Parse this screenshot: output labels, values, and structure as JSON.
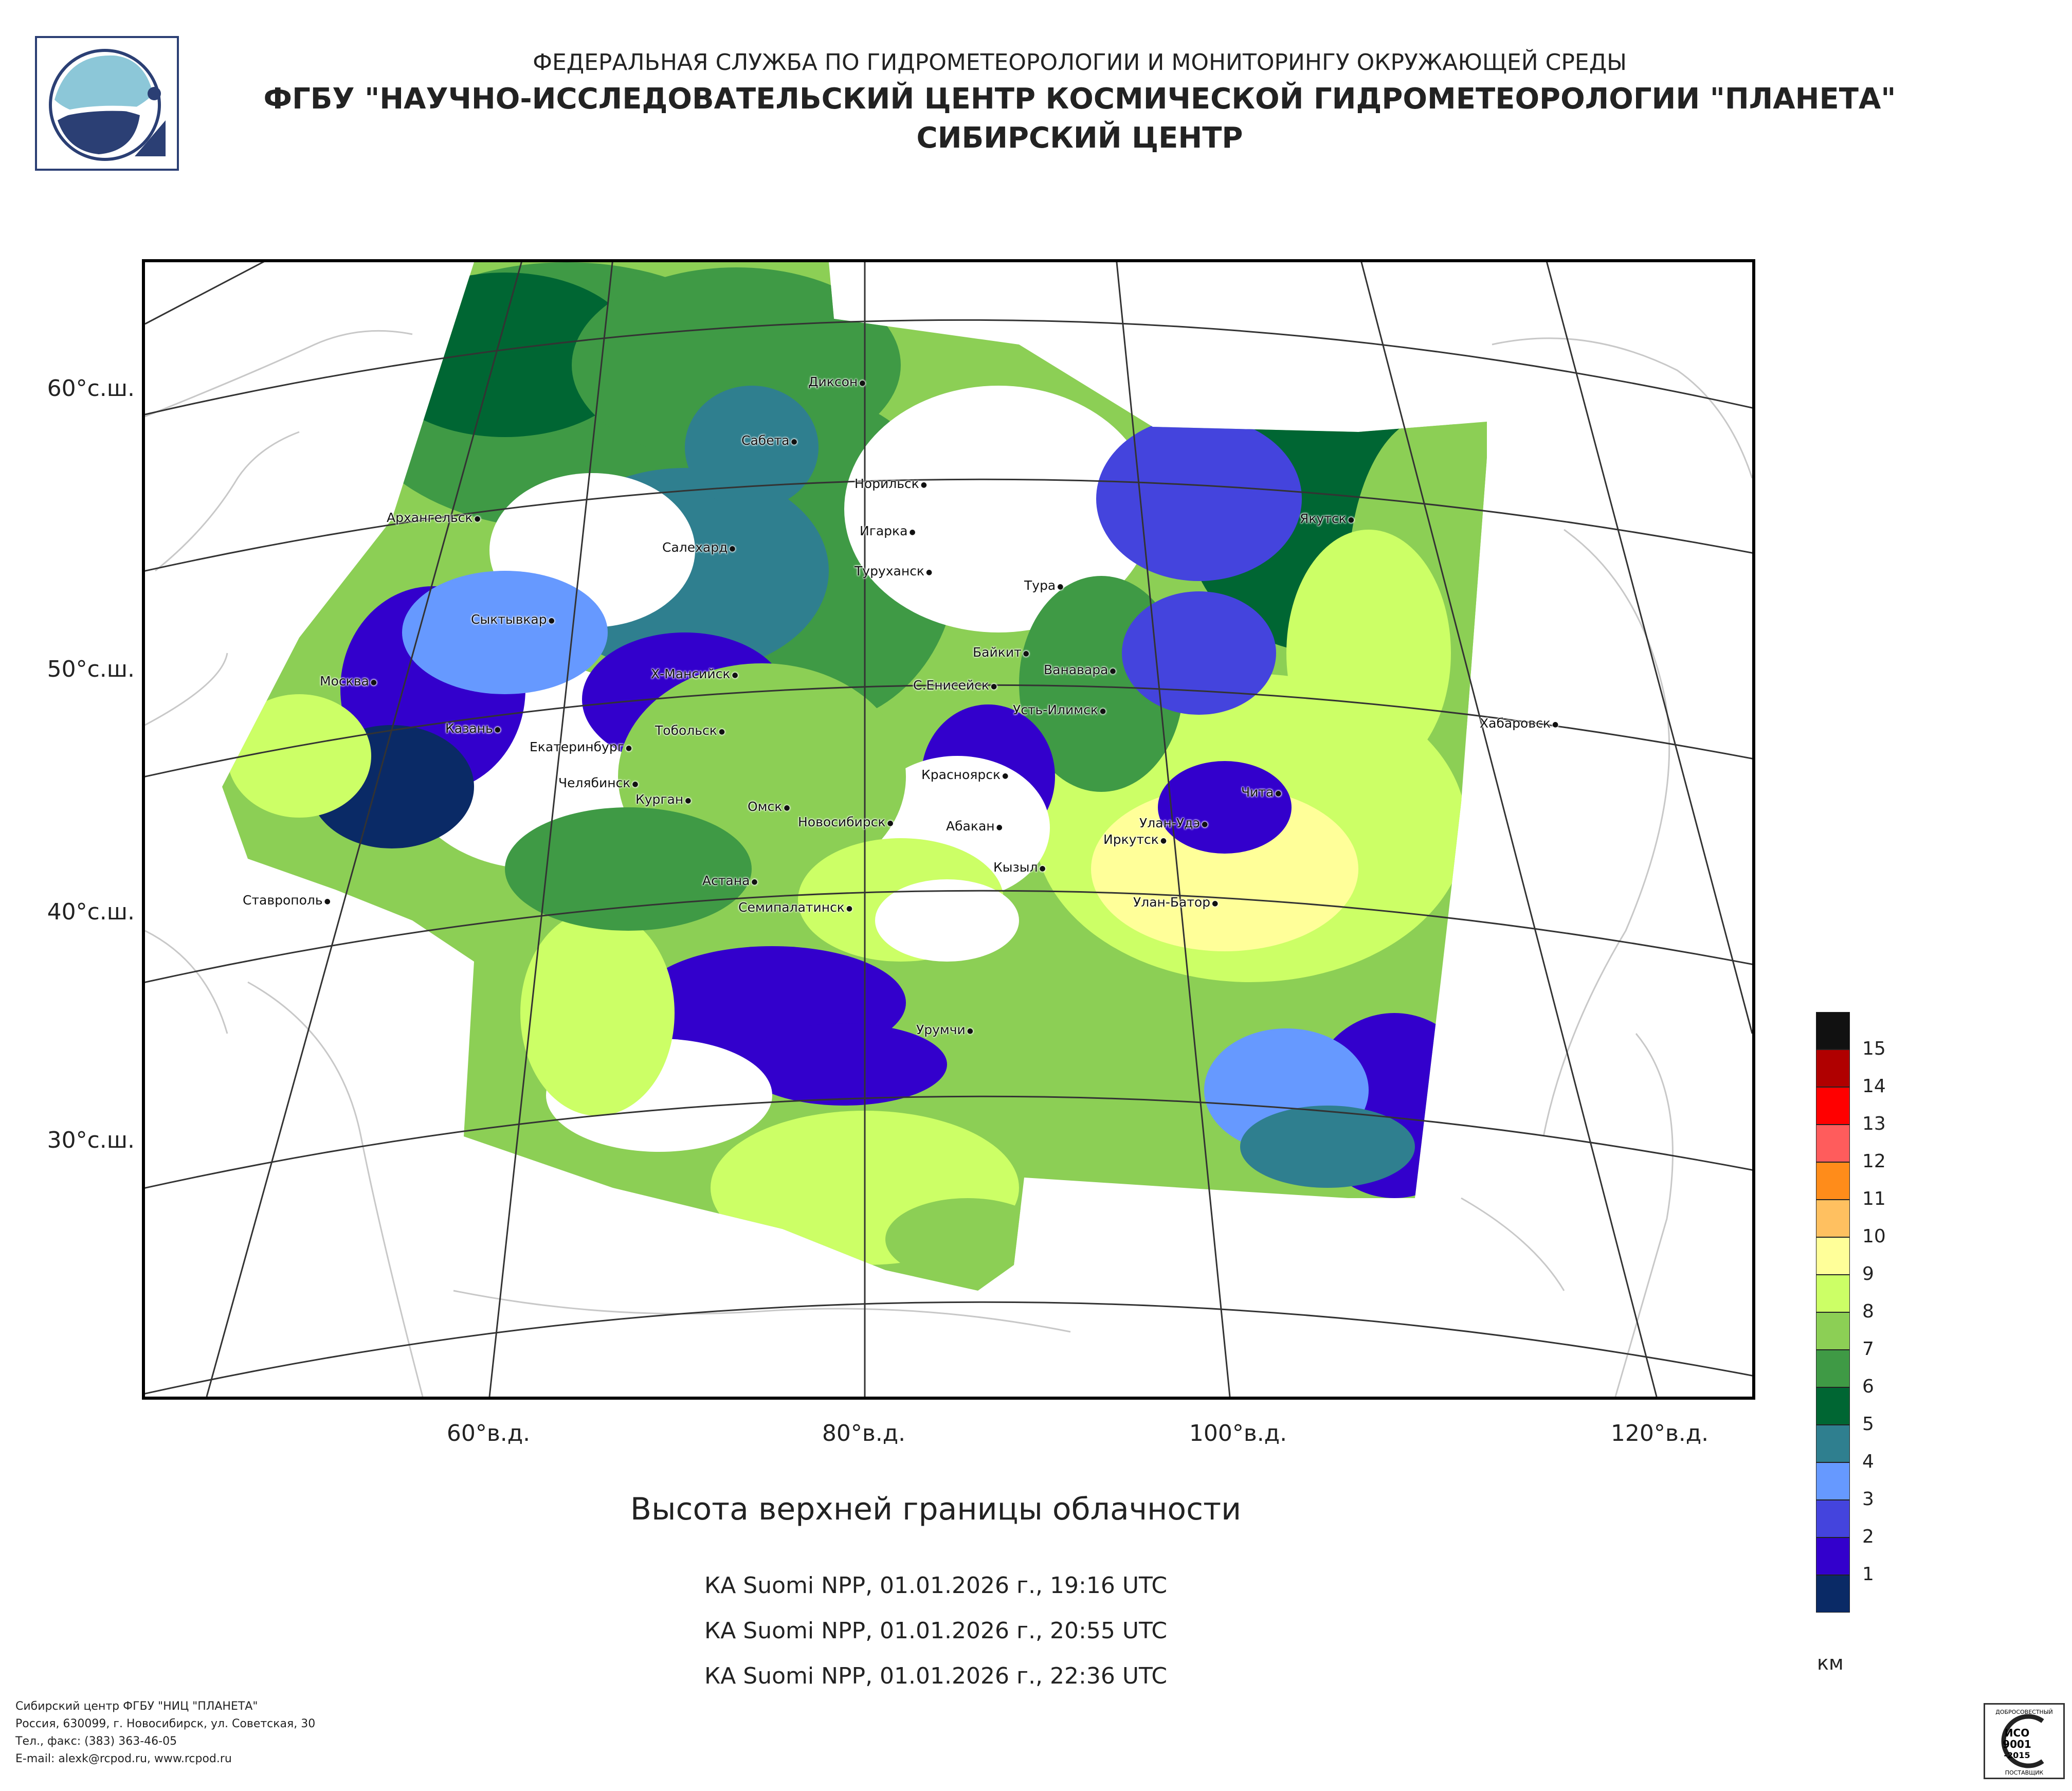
{
  "header": {
    "line1": "ФЕДЕРАЛЬНАЯ СЛУЖБА ПО ГИДРОМЕТЕОРОЛОГИИ И МОНИТОРИНГУ ОКРУЖАЮЩЕЙ СРЕДЫ",
    "line2": "ФГБУ \"НАУЧНО-ИССЛЕДОВАТЕЛЬСКИЙ ЦЕНТР КОСМИЧЕСКОЙ ГИДРОМЕТЕОРОЛОГИИ \"ПЛАНЕТА\"",
    "line3": "СИБИРСКИЙ ЦЕНТР"
  },
  "axes": {
    "lat_labels": [
      "60°с.ш.",
      "50°с.ш.",
      "40°с.ш.",
      "30°с.ш."
    ],
    "lon_labels": [
      "60°в.д.",
      "80°в.д.",
      "100°в.д.",
      "120°в.д."
    ]
  },
  "cities": [
    "Диксон",
    "Сабета",
    "Норильск",
    "Игарка",
    "Туруханск",
    "Салехард",
    "Архангельск",
    "Сыктывкар",
    "Тура",
    "Якутск",
    "Байкит",
    "Ванавара",
    "Москва",
    "Х-Мансийск",
    "С.Енисейск",
    "Усть-Илимск",
    "Казань",
    "Тобольск",
    "Екатеринбург",
    "Челябинск",
    "Курган",
    "Красноярск",
    "Омск",
    "Новосибирск",
    "Абакан",
    "Иркутск",
    "Улан-Удэ",
    "Чита",
    "Кызыл",
    "Астана",
    "Семипалатинск",
    "Улан-Батор",
    "Урумчи",
    "Ставрополь",
    "Хабаровск"
  ],
  "title": "Высота верхней границы облачности",
  "passes": [
    "КА Suomi NPP, 01.01.2026 г., 19:16 UTC",
    "КА Suomi NPP, 01.01.2026 г., 20:55 UTC",
    "КА Suomi NPP, 01.01.2026 г., 22:36 UTC"
  ],
  "legend": {
    "unit": "км",
    "ticks": [
      "15",
      "14",
      "13",
      "12",
      "11",
      "10",
      "9",
      "8",
      "7",
      "6",
      "5",
      "4",
      "3",
      "2",
      "1"
    ],
    "colors": [
      "#111111",
      "#b00000",
      "#ff0000",
      "#ff5c5c",
      "#ff8c1a",
      "#ffc060",
      "#ffff99",
      "#ccff66",
      "#8ccf55",
      "#3f9a45",
      "#006633",
      "#2f7f8f",
      "#6699ff",
      "#4444dd",
      "#3300cc",
      "#0a2a66"
    ]
  },
  "footer": [
    "Сибирский центр ФГБУ \"НИЦ \"ПЛАНЕТА\"",
    "Россия, 630099, г. Новосибирск, ул. Советская, 30",
    "Тел., факс: (383) 363-46-05",
    "E-mail: alexk@rcpod.ru, www.rcpod.ru"
  ],
  "iso_badge": {
    "top": "ДОБРОСОВЕСТНЫЙ",
    "line1": "ИСО",
    "line2": "9001",
    "line3": "-2015",
    "bottom": "ПОСТАВЩИК"
  }
}
